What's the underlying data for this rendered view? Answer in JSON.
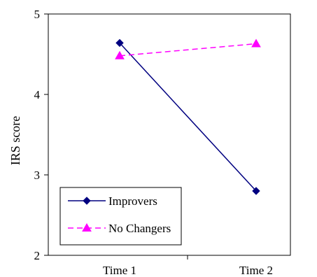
{
  "chart_data": {
    "type": "line",
    "categories": [
      "Time 1",
      "Time 2"
    ],
    "ylabel": "IRS score",
    "ylim": [
      2,
      5
    ],
    "yticks": [
      2,
      3,
      4,
      5
    ],
    "grid": false,
    "legend_position": "bottom-left",
    "series": [
      {
        "name": "Improvers",
        "values": [
          4.64,
          2.8
        ],
        "color": "#000080",
        "marker": "diamond",
        "line_style": "solid"
      },
      {
        "name": "No Changers",
        "values": [
          4.48,
          4.63
        ],
        "color": "#FF00FF",
        "marker": "triangle",
        "line_style": "dashed"
      }
    ]
  }
}
